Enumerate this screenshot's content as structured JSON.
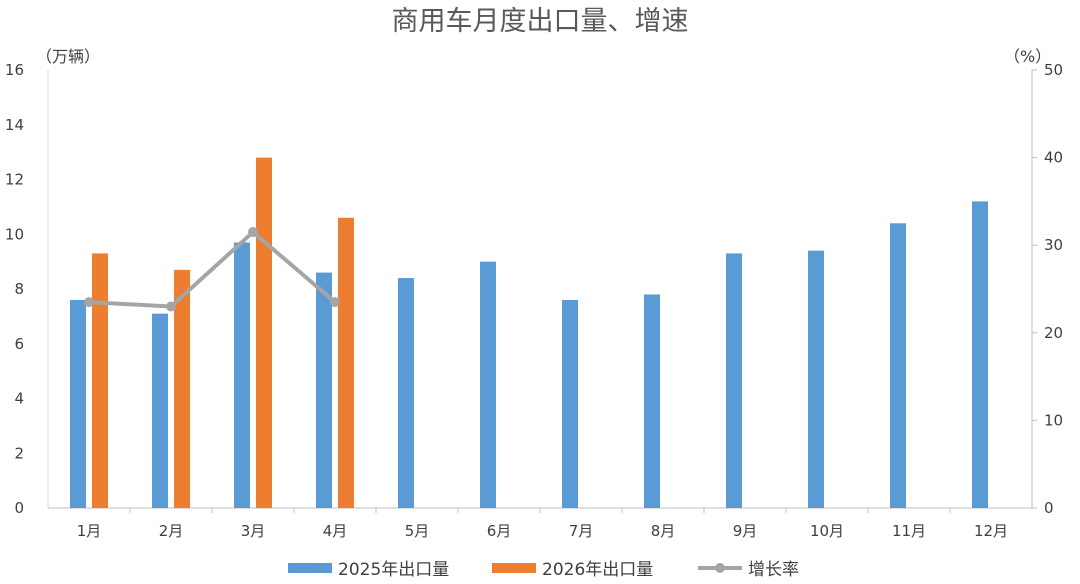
{
  "chart_data": {
    "type": "bar",
    "title": "商用车月度出口量、增速",
    "left_axis_unit": "（万辆）",
    "right_axis_unit": "（%）",
    "categories": [
      "1月",
      "2月",
      "3月",
      "4月",
      "5月",
      "6月",
      "7月",
      "8月",
      "9月",
      "10月",
      "11月",
      "12月"
    ],
    "ylim": [
      0,
      16
    ],
    "y_ticks": [
      "0",
      "2",
      "4",
      "6",
      "8",
      "10",
      "12",
      "14",
      "16"
    ],
    "y2lim": [
      0,
      50
    ],
    "y2_ticks": [
      "0",
      "10",
      "20",
      "30",
      "40",
      "50"
    ],
    "legend_position": "bottom",
    "series": [
      {
        "name": "2025年出口量",
        "kind": "bar",
        "axis": "left",
        "color": "#5B9BD5",
        "values": [
          7.6,
          7.1,
          9.7,
          8.6,
          8.4,
          9.0,
          7.6,
          7.8,
          9.3,
          9.4,
          10.4,
          11.2
        ]
      },
      {
        "name": "2026年出口量",
        "kind": "bar",
        "axis": "left",
        "color": "#ED7D31",
        "values": [
          9.3,
          8.7,
          12.8,
          10.6,
          null,
          null,
          null,
          null,
          null,
          null,
          null,
          null
        ]
      },
      {
        "name": "增长率",
        "kind": "line",
        "axis": "right",
        "color": "#A5A5A5",
        "values": [
          23.5,
          23.0,
          31.5,
          23.5,
          null,
          null,
          null,
          null,
          null,
          null,
          null,
          null
        ]
      }
    ]
  }
}
